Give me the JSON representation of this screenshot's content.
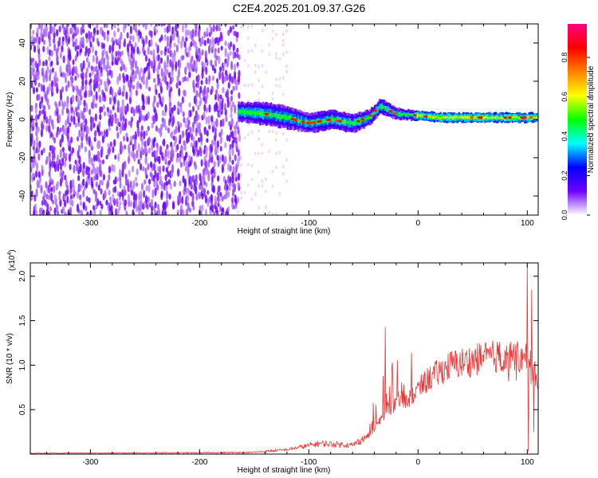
{
  "title": "C2E4.2025.201.09.37.G26",
  "chart_data": [
    {
      "type": "heatmap",
      "name": "spectrogram",
      "xlabel": "Height of straight line (km)",
      "ylabel": "Frequency (Hz)",
      "xlim": [
        -355,
        110
      ],
      "ylim": [
        -50,
        50
      ],
      "xticks": [
        -300,
        -200,
        -100,
        0,
        100
      ],
      "xtick_labels": [
        "-300",
        "-200",
        "-100",
        "0",
        "100"
      ],
      "yticks": [
        -40,
        -20,
        0,
        20,
        40
      ],
      "ytick_labels": [
        "-40",
        "-20",
        "0",
        "20",
        "40"
      ],
      "colorbar": {
        "label": "Normalized spectral amplitude",
        "range": [
          0,
          0.97
        ],
        "ticks": [
          0.0,
          0.2,
          0.4,
          0.6,
          0.8
        ],
        "tick_labels": [
          "0.0",
          "0.2",
          "0.4",
          "0.6",
          "0.8"
        ],
        "stops": [
          "#ffffff",
          "#7000ff",
          "#0000ff",
          "#00ffff",
          "#00ff00",
          "#ffff00",
          "#ff8000",
          "#ff0000",
          "#ff0080"
        ]
      },
      "noise_region": {
        "x": [
          -355,
          -165
        ],
        "amplitude": 0.1
      },
      "sparse_region": {
        "x": [
          -165,
          -120
        ],
        "amplitude": 0.04
      },
      "signal_track": [
        {
          "x": -165,
          "freq": 4,
          "width": 5
        },
        {
          "x": -140,
          "freq": 3,
          "width": 6
        },
        {
          "x": -120,
          "freq": 1,
          "width": 6
        },
        {
          "x": -100,
          "freq": -2,
          "width": 5
        },
        {
          "x": -80,
          "freq": 0,
          "width": 5
        },
        {
          "x": -60,
          "freq": -2,
          "width": 5
        },
        {
          "x": -45,
          "freq": 1,
          "width": 4
        },
        {
          "x": -35,
          "freq": 7,
          "width": 4
        },
        {
          "x": -20,
          "freq": 3,
          "width": 3
        },
        {
          "x": 0,
          "freq": 2,
          "width": 2.5
        },
        {
          "x": 20,
          "freq": 1,
          "width": 2.5
        },
        {
          "x": 60,
          "freq": 1,
          "width": 2.5
        },
        {
          "x": 110,
          "freq": 1,
          "width": 2.5
        }
      ]
    },
    {
      "type": "line",
      "name": "snr",
      "xlabel": "Height of straight line (km)",
      "ylabel": "SNR (10 * v/v)",
      "y_multiplier": "(x10",
      "y_multiplier_exp": "4",
      "color": "#ee3333",
      "xlim": [
        -355,
        110
      ],
      "ylim": [
        0,
        2.15
      ],
      "xticks": [
        -300,
        -200,
        -100,
        0,
        100
      ],
      "xtick_labels": [
        "-300",
        "-200",
        "-100",
        "0",
        "100"
      ],
      "yticks": [
        0.5,
        1.0,
        1.5,
        2.0
      ],
      "ytick_labels": [
        "0.5",
        "1.0",
        "1.5",
        "2.0"
      ],
      "envelope": [
        {
          "x": -355,
          "y": 0.01
        },
        {
          "x": -200,
          "y": 0.015
        },
        {
          "x": -150,
          "y": 0.02
        },
        {
          "x": -120,
          "y": 0.05
        },
        {
          "x": -90,
          "y": 0.12
        },
        {
          "x": -60,
          "y": 0.1
        },
        {
          "x": -40,
          "y": 0.25
        },
        {
          "x": -30,
          "y": 0.5
        },
        {
          "x": -10,
          "y": 0.6
        },
        {
          "x": 10,
          "y": 0.85
        },
        {
          "x": 30,
          "y": 1.0
        },
        {
          "x": 60,
          "y": 1.08
        },
        {
          "x": 90,
          "y": 1.12
        },
        {
          "x": 100,
          "y": 1.1
        },
        {
          "x": 110,
          "y": 0.8
        }
      ],
      "peaks": [
        {
          "x": -30,
          "y": 1.43
        },
        {
          "x": 100,
          "y": 2.15
        },
        {
          "x": 101,
          "y": 0.03
        },
        {
          "x": 104,
          "y": 1.85
        },
        {
          "x": 106,
          "y": 0.25
        }
      ]
    }
  ]
}
